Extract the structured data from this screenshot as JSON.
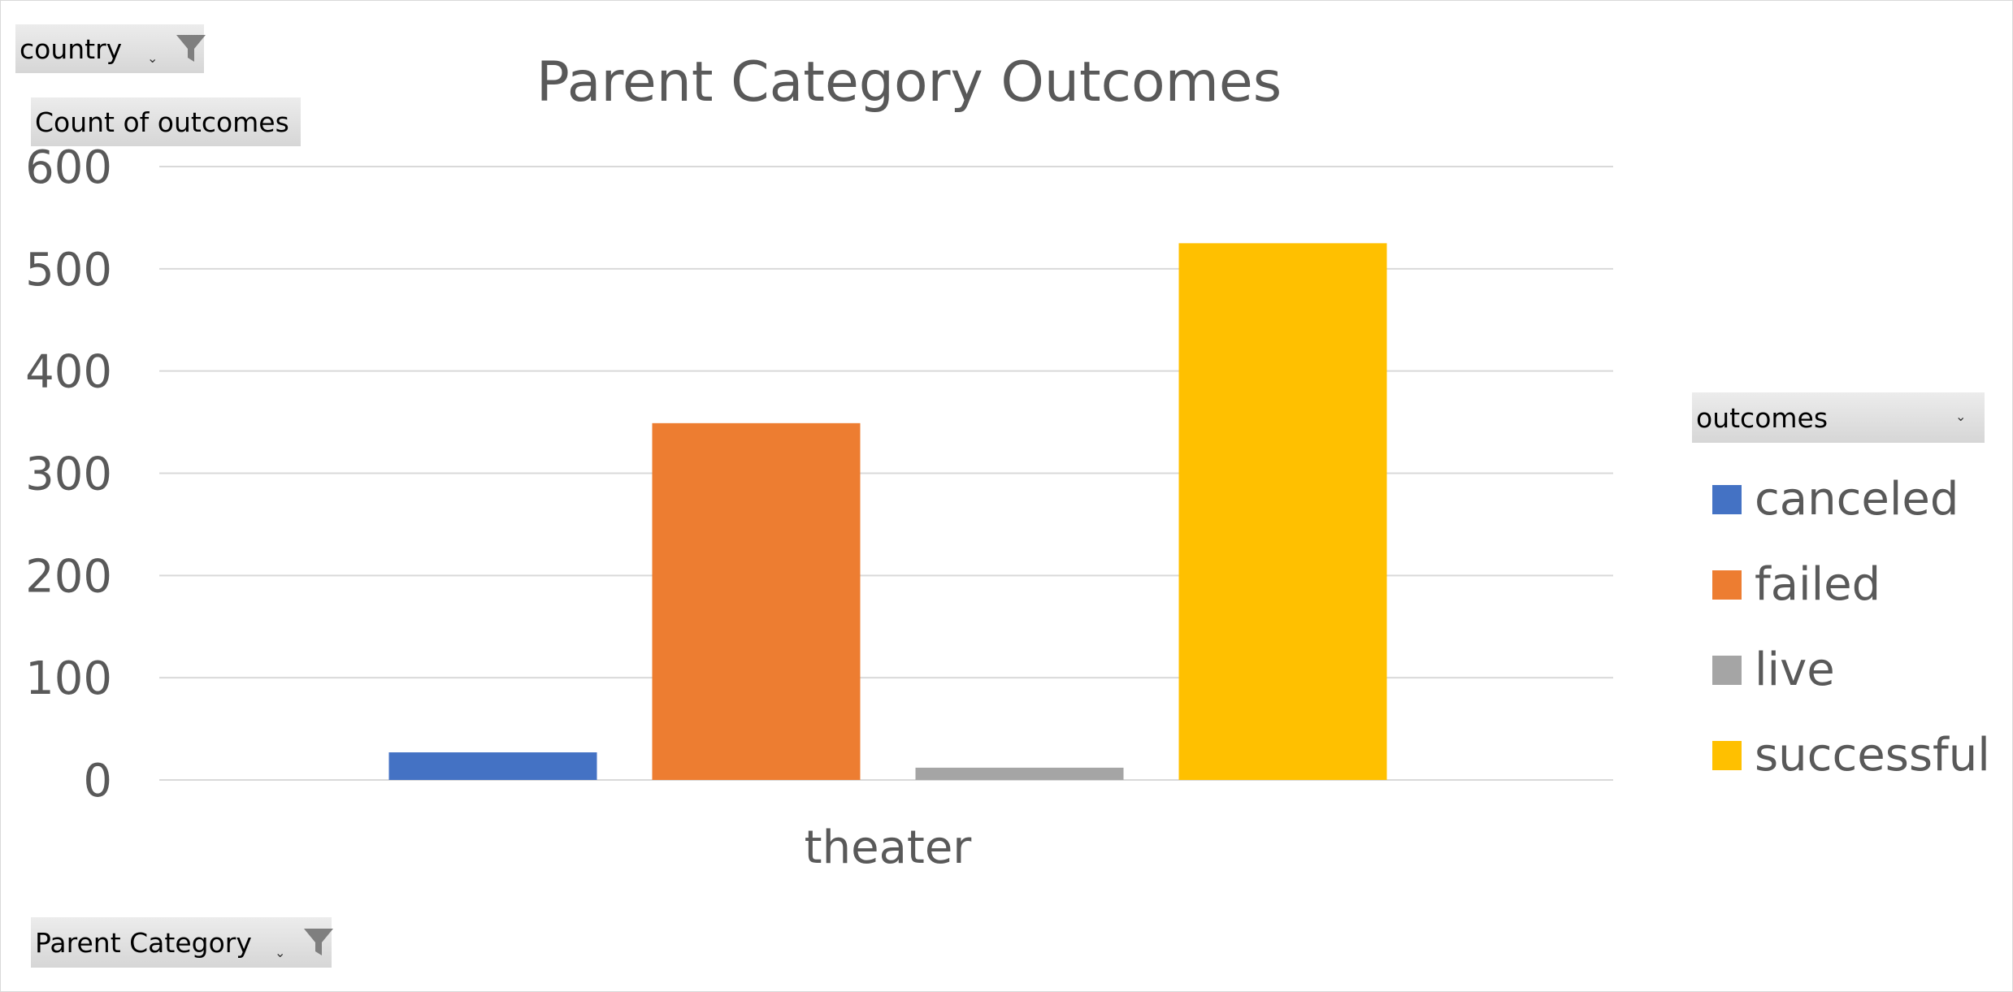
{
  "filters": {
    "report_filter_label": "country",
    "value_field_label": "Count of outcomes",
    "axis_field_label": "Parent Category",
    "legend_field_label": "outcomes"
  },
  "icons": {
    "filter": "funnel-icon",
    "dropdown": "dropdown-arrow-icon"
  },
  "chart_data": {
    "type": "bar",
    "title": "Parent Category Outcomes",
    "categories": [
      "theater"
    ],
    "series": [
      {
        "name": "canceled",
        "values": [
          27
        ],
        "color": "#4472C4"
      },
      {
        "name": "failed",
        "values": [
          349
        ],
        "color": "#ED7D31"
      },
      {
        "name": "live",
        "values": [
          12
        ],
        "color": "#A5A5A5"
      },
      {
        "name": "successful",
        "values": [
          525
        ],
        "color": "#FFC000"
      }
    ],
    "ylim": [
      0,
      600
    ],
    "yticks": [
      0,
      100,
      200,
      300,
      400,
      500,
      600
    ],
    "grid": true,
    "legend_position": "right"
  }
}
